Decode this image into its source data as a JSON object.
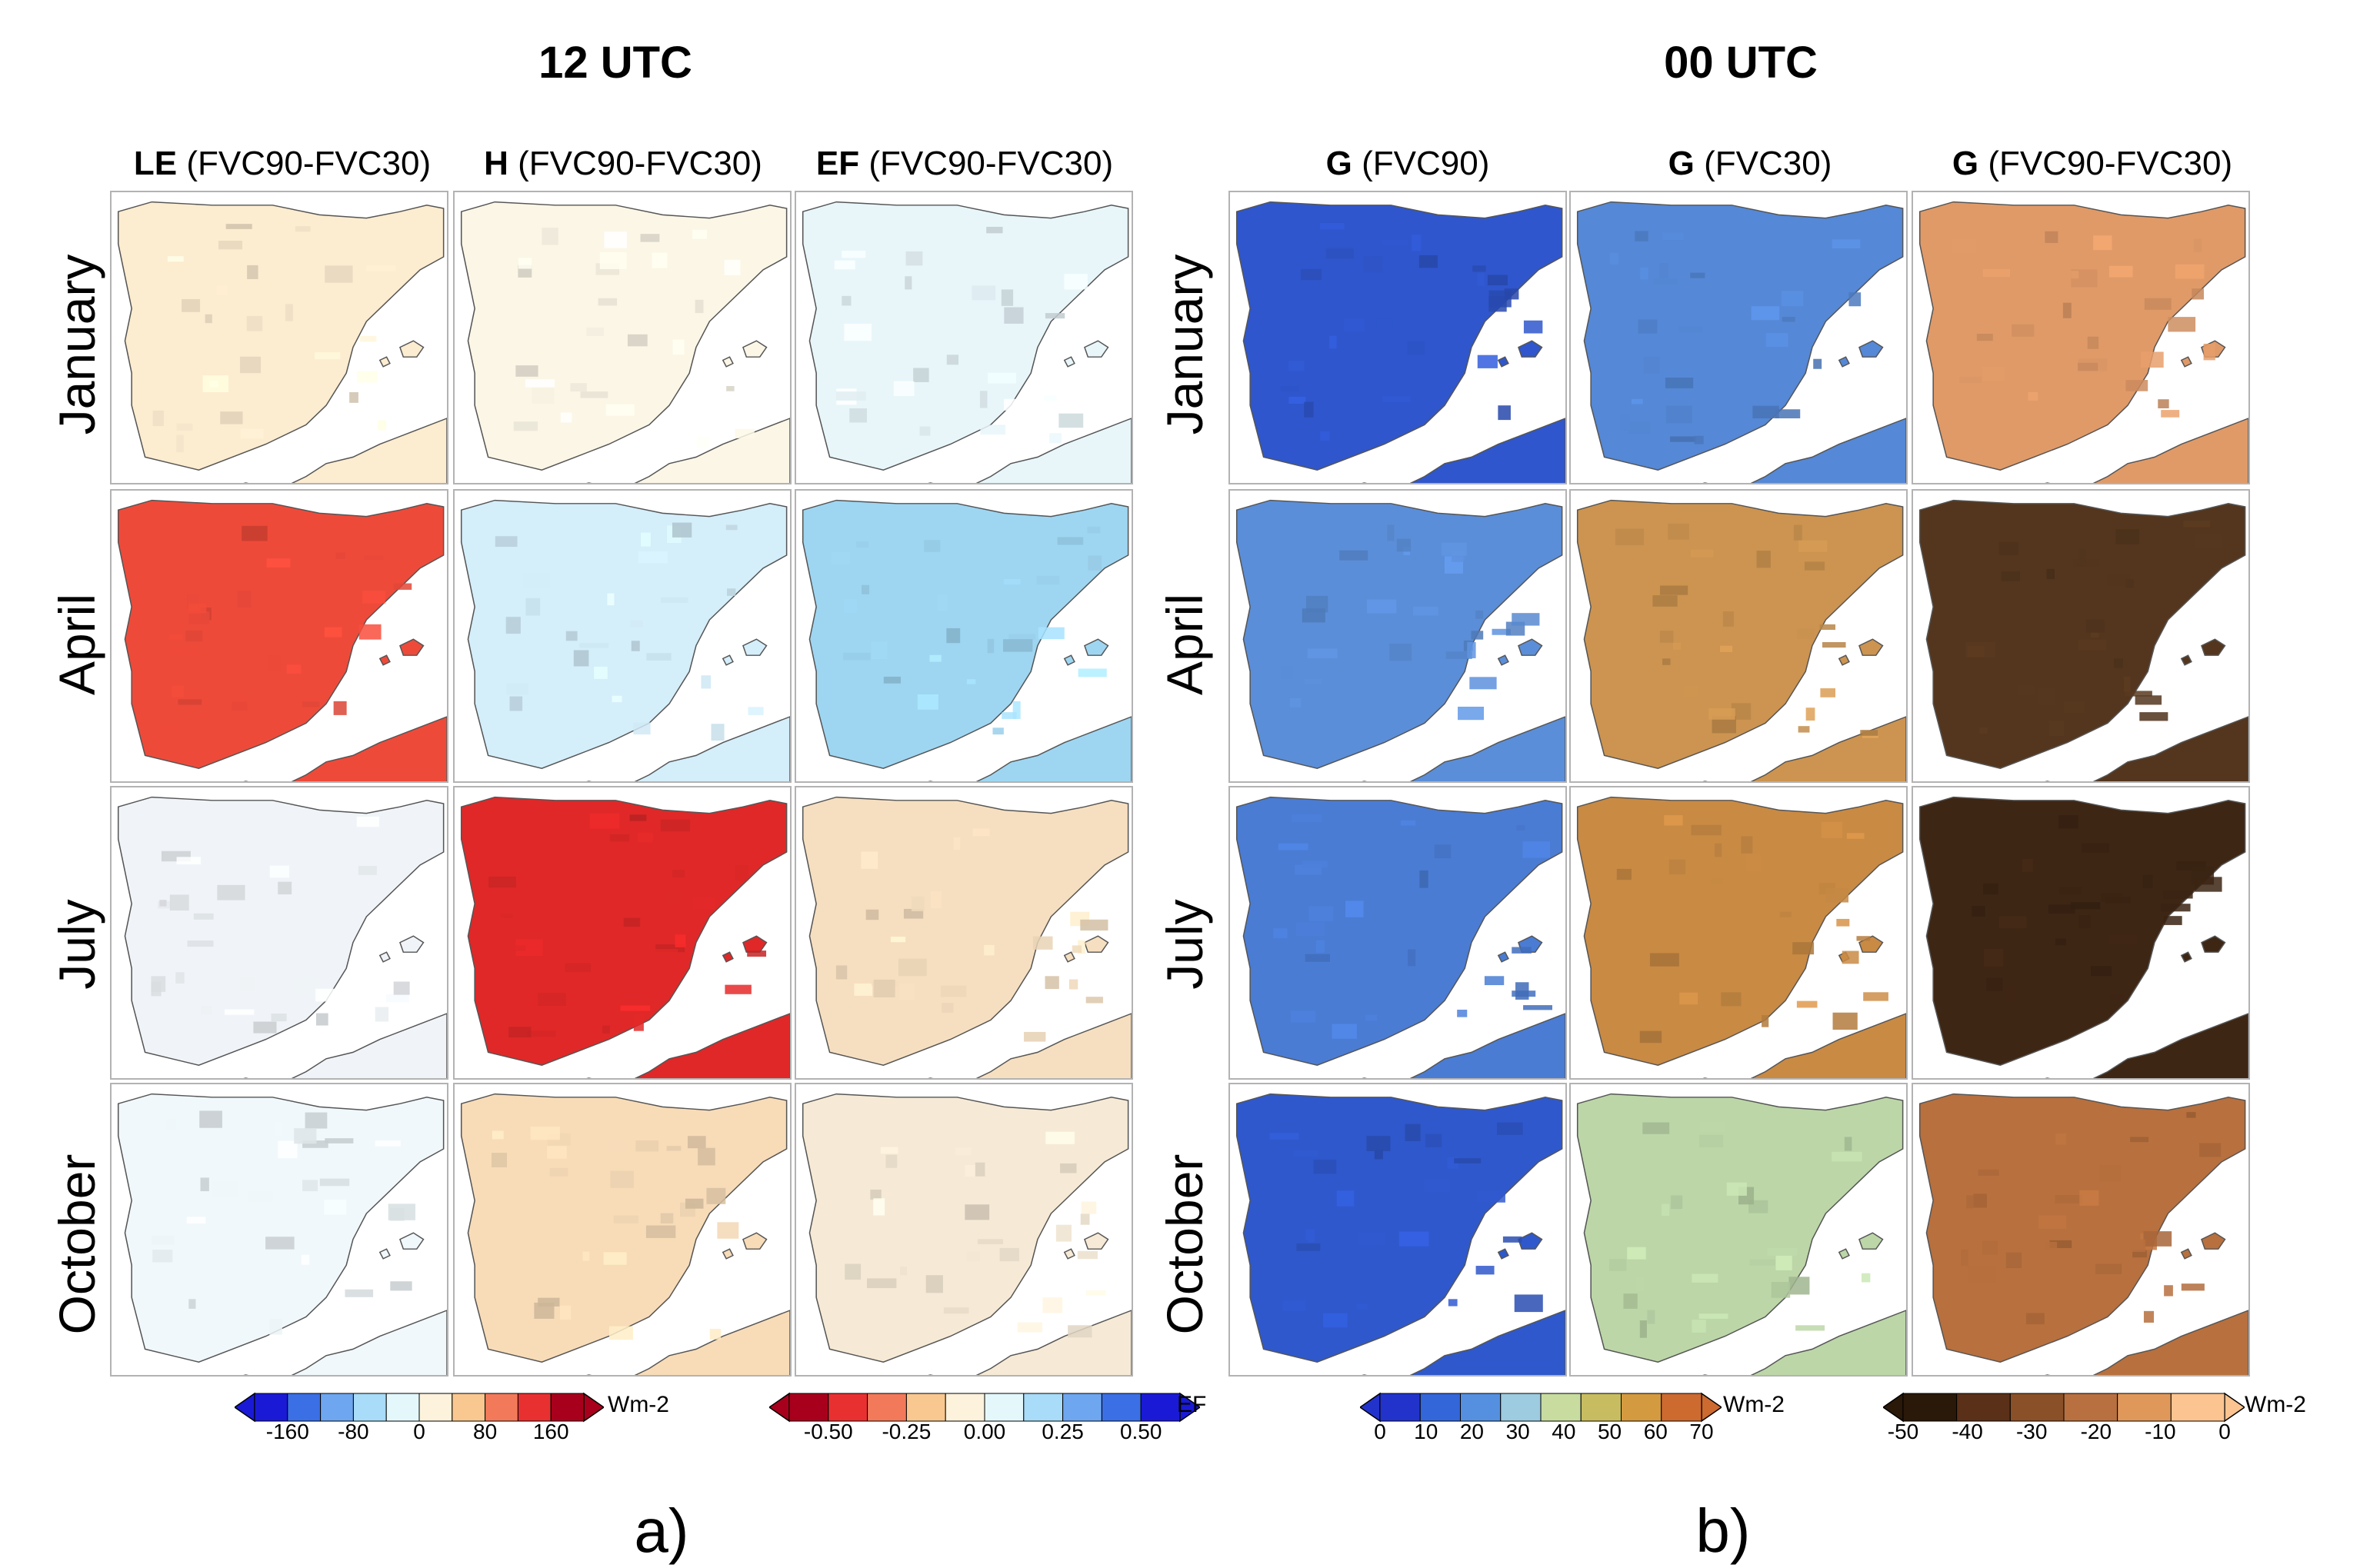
{
  "section_a": {
    "title": "12 UTC",
    "label": "a)",
    "columns": [
      {
        "var": "LE",
        "desc": "(FVC90-FVC30)"
      },
      {
        "var": "H",
        "desc": "(FVC90-FVC30)"
      },
      {
        "var": "EF",
        "desc": "(FVC90-FVC30)"
      }
    ],
    "colorbars": [
      {
        "unit": "Wm-2",
        "ticks": [
          "-160",
          "-80",
          "0",
          "80",
          "160"
        ],
        "colors": [
          "#1a1ad6",
          "#3b6fe6",
          "#6ea6f0",
          "#a8dcf8",
          "#e4f8fb",
          "#fdf2dc",
          "#f8c890",
          "#f27a5a",
          "#e83030",
          "#a8001c"
        ]
      },
      {
        "unit": "EF",
        "ticks": [
          "-0.50",
          "-0.25",
          "0.00",
          "0.25",
          "0.50"
        ],
        "colors": [
          "#a8001c",
          "#e83030",
          "#f27a5a",
          "#f8c890",
          "#fdf2dc",
          "#e4f8fb",
          "#a8dcf8",
          "#6ea6f0",
          "#3b6fe6",
          "#1a1ad6"
        ]
      }
    ]
  },
  "section_b": {
    "title": "00 UTC",
    "label": "b)",
    "columns": [
      {
        "var": "G",
        "desc": "(FVC90)"
      },
      {
        "var": "G",
        "desc": "(FVC30)"
      },
      {
        "var": "G",
        "desc": "(FVC90-FVC30)"
      }
    ],
    "colorbars": [
      {
        "unit": "Wm-2",
        "ticks": [
          "0",
          "10",
          "20",
          "30",
          "40",
          "50",
          "60",
          "70"
        ],
        "colors": [
          "#2233cc",
          "#3366d9",
          "#5590e0",
          "#9dcbe0",
          "#c8dca0",
          "#c8bc60",
          "#d49a40",
          "#cc6a30"
        ]
      },
      {
        "unit": "Wm-2",
        "ticks": [
          "-50",
          "-40",
          "-30",
          "-20",
          "-10",
          "0"
        ],
        "colors": [
          "#2a1808",
          "#5a3018",
          "#8a5028",
          "#b87040",
          "#e0985a",
          "#fbc490"
        ]
      }
    ]
  },
  "rows": [
    "January",
    "April",
    "July",
    "October"
  ],
  "tile_fills": {
    "a": [
      [
        "#fcecd0",
        "#fbf6e6",
        "#e8f6fa"
      ],
      [
        "#ee4a3a",
        "#d4eefa",
        "#9ed6f2"
      ],
      [
        "#f0f4f8",
        "#e02828",
        "#f6dfc0"
      ],
      [
        "#f0f8fb",
        "#f8dcb8",
        "#f6ead6"
      ]
    ],
    "b": [
      [
        "#2f56cc",
        "#5588d6",
        "#e09a68"
      ],
      [
        "#5b8ed8",
        "#cc9450",
        "#54361e"
      ],
      [
        "#4a7cd4",
        "#c98a44",
        "#3e2614"
      ],
      [
        "#2f58cc",
        "#bcd6a8",
        "#b8703e"
      ]
    ]
  }
}
